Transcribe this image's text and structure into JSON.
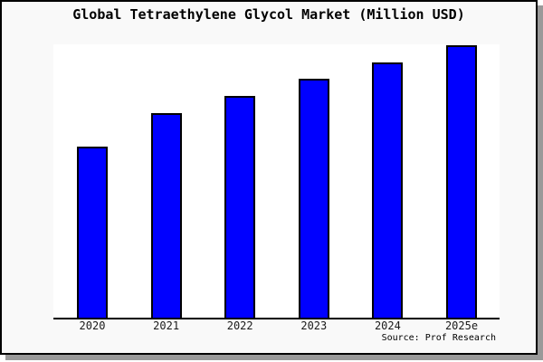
{
  "header": {
    "title": "Global Tetraethylene Glycol Market (Million USD)"
  },
  "footer": {
    "source_text": "Source: Prof Research"
  },
  "chart_data": {
    "type": "bar",
    "title": "Global Tetraethylene Glycol Market (Million USD)",
    "categories": [
      "2020",
      "2021",
      "2022",
      "2023",
      "2024",
      "2025e"
    ],
    "values": [
      62.8,
      75.1,
      81.4,
      87.7,
      93.7,
      100
    ],
    "xlabel": "",
    "ylabel": "",
    "ylim": [
      0,
      101
    ],
    "y_axis_shown": false,
    "grid": false,
    "legend": "none",
    "units": "relative (no y-axis scale shown; 2025e bar = 100)",
    "bar_fill_color": "#0000ff",
    "bar_border_color": "#000000"
  },
  "colors": {
    "frame_background": "#f9f9f9",
    "plot_background": "#ffffff",
    "frame_border": "#000000",
    "axis_line": "#000000",
    "drop_shadow": "#999999",
    "tick_label_text": "#1a1a1a",
    "title_text": "#000000"
  }
}
